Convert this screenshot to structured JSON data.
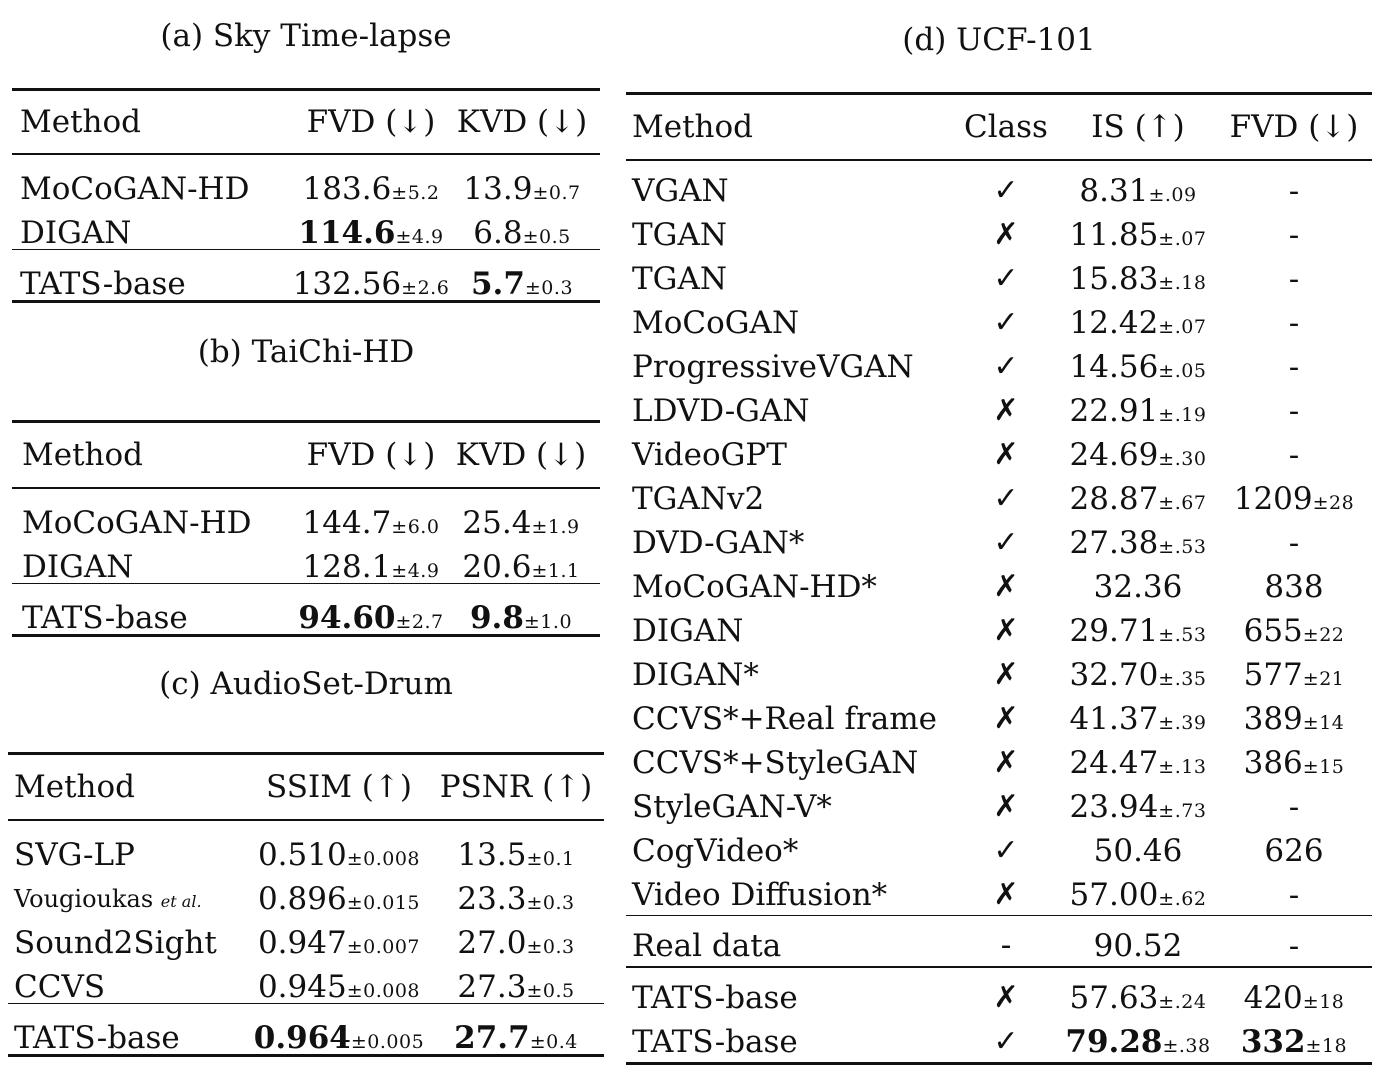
{
  "panels": [
    {
      "id": "a",
      "caption": "(a) Sky Time-lapse",
      "headers": [
        "Method",
        "FVD (↓)",
        "KVD (↓)"
      ],
      "groups": [
        [
          {
            "method": "MoCoGAN-HD",
            "cols": [
              {
                "v": "183.6",
                "pm": "±5.2",
                "bold": false
              },
              {
                "v": "13.9",
                "pm": "±0.7",
                "bold": false
              }
            ]
          },
          {
            "method": "DIGAN",
            "cols": [
              {
                "v": "114.6",
                "pm": "±4.9",
                "bold": true
              },
              {
                "v": "6.8",
                "pm": "±0.5",
                "bold": false
              }
            ]
          }
        ],
        [
          {
            "method": "TATS-base",
            "cols": [
              {
                "v": "132.56",
                "pm": "±2.6",
                "bold": false
              },
              {
                "v": "5.7",
                "pm": "±0.3",
                "bold": true
              }
            ]
          }
        ]
      ]
    },
    {
      "id": "b",
      "caption": "(b) TaiChi-HD",
      "headers": [
        "Method",
        "FVD (↓)",
        "KVD (↓)"
      ],
      "groups": [
        [
          {
            "method": "MoCoGAN-HD",
            "cols": [
              {
                "v": "144.7",
                "pm": "±6.0",
                "bold": false
              },
              {
                "v": "25.4",
                "pm": "±1.9",
                "bold": false
              }
            ]
          },
          {
            "method": "DIGAN",
            "cols": [
              {
                "v": "128.1",
                "pm": "±4.9",
                "bold": false
              },
              {
                "v": "20.6",
                "pm": "±1.1",
                "bold": false
              }
            ]
          }
        ],
        [
          {
            "method": "TATS-base",
            "cols": [
              {
                "v": "94.60",
                "pm": "±2.7",
                "bold": true
              },
              {
                "v": "9.8",
                "pm": "±1.0",
                "bold": true
              }
            ]
          }
        ]
      ]
    },
    {
      "id": "c",
      "caption": "(c) AudioSet-Drum",
      "headers": [
        "Method",
        "SSIM (↑)",
        "PSNR (↑)"
      ],
      "groups": [
        [
          {
            "method": "SVG-LP",
            "cols": [
              {
                "v": "0.510",
                "pm": "±0.008",
                "bold": false
              },
              {
                "v": "13.5",
                "pm": "±0.1",
                "bold": false
              }
            ]
          },
          {
            "method": "Vougioukas",
            "etal": "et al.",
            "cols": [
              {
                "v": "0.896",
                "pm": "±0.015",
                "bold": false
              },
              {
                "v": "23.3",
                "pm": "±0.3",
                "bold": false
              }
            ]
          },
          {
            "method": "Sound2Sight",
            "cols": [
              {
                "v": "0.947",
                "pm": "±0.007",
                "bold": false
              },
              {
                "v": "27.0",
                "pm": "±0.3",
                "bold": false
              }
            ]
          },
          {
            "method": "CCVS",
            "cols": [
              {
                "v": "0.945",
                "pm": "±0.008",
                "bold": false
              },
              {
                "v": "27.3",
                "pm": "±0.5",
                "bold": false
              }
            ]
          }
        ],
        [
          {
            "method": "TATS-base",
            "cols": [
              {
                "v": "0.964",
                "pm": "±0.005",
                "bold": true
              },
              {
                "v": "27.7",
                "pm": "±0.4",
                "bold": true
              }
            ]
          }
        ]
      ]
    },
    {
      "id": "d",
      "caption": "(d) UCF-101",
      "headers": [
        "Method",
        "Class",
        "IS (↑)",
        "FVD (↓)"
      ],
      "groups": [
        [
          {
            "method": "VGAN",
            "cls": "check",
            "cols": [
              {
                "v": "8.31",
                "pm": "±.09",
                "bold": false
              },
              {
                "v": "-",
                "pm": "",
                "bold": false
              }
            ]
          },
          {
            "method": "TGAN",
            "cls": "cross",
            "cols": [
              {
                "v": "11.85",
                "pm": "±.07",
                "bold": false
              },
              {
                "v": "-",
                "pm": "",
                "bold": false
              }
            ]
          },
          {
            "method": "TGAN",
            "cls": "check",
            "cols": [
              {
                "v": "15.83",
                "pm": "±.18",
                "bold": false
              },
              {
                "v": "-",
                "pm": "",
                "bold": false
              }
            ]
          },
          {
            "method": "MoCoGAN",
            "cls": "check",
            "cols": [
              {
                "v": "12.42",
                "pm": "±.07",
                "bold": false
              },
              {
                "v": "-",
                "pm": "",
                "bold": false
              }
            ]
          },
          {
            "method": "ProgressiveVGAN",
            "cls": "check",
            "cols": [
              {
                "v": "14.56",
                "pm": "±.05",
                "bold": false
              },
              {
                "v": "-",
                "pm": "",
                "bold": false
              }
            ]
          },
          {
            "method": "LDVD-GAN",
            "cls": "cross",
            "cols": [
              {
                "v": "22.91",
                "pm": "±.19",
                "bold": false
              },
              {
                "v": "-",
                "pm": "",
                "bold": false
              }
            ]
          },
          {
            "method": "VideoGPT",
            "cls": "cross",
            "cols": [
              {
                "v": "24.69",
                "pm": "±.30",
                "bold": false
              },
              {
                "v": "-",
                "pm": "",
                "bold": false
              }
            ]
          },
          {
            "method": "TGANv2",
            "cls": "check",
            "cols": [
              {
                "v": "28.87",
                "pm": "±.67",
                "bold": false
              },
              {
                "v": "1209",
                "pm": "±28",
                "bold": false
              }
            ]
          },
          {
            "method": "DVD-GAN*",
            "cls": "check",
            "cols": [
              {
                "v": "27.38",
                "pm": "±.53",
                "bold": false
              },
              {
                "v": "-",
                "pm": "",
                "bold": false
              }
            ]
          },
          {
            "method": "MoCoGAN-HD*",
            "cls": "cross",
            "cols": [
              {
                "v": "32.36",
                "pm": "",
                "bold": false
              },
              {
                "v": "838",
                "pm": "",
                "bold": false
              }
            ]
          },
          {
            "method": "DIGAN",
            "cls": "cross",
            "cols": [
              {
                "v": "29.71",
                "pm": "±.53",
                "bold": false
              },
              {
                "v": "655",
                "pm": "±22",
                "bold": false
              }
            ]
          },
          {
            "method": "DIGAN*",
            "cls": "cross",
            "cols": [
              {
                "v": "32.70",
                "pm": "±.35",
                "bold": false
              },
              {
                "v": "577",
                "pm": "±21",
                "bold": false
              }
            ]
          },
          {
            "method": "CCVS*+Real frame",
            "cls": "cross",
            "cols": [
              {
                "v": "41.37",
                "pm": "±.39",
                "bold": false
              },
              {
                "v": "389",
                "pm": "±14",
                "bold": false
              }
            ]
          },
          {
            "method": "CCVS*+StyleGAN",
            "cls": "cross",
            "cols": [
              {
                "v": "24.47",
                "pm": "±.13",
                "bold": false
              },
              {
                "v": "386",
                "pm": "±15",
                "bold": false
              }
            ]
          },
          {
            "method": "StyleGAN-V*",
            "cls": "cross",
            "cols": [
              {
                "v": "23.94",
                "pm": "±.73",
                "bold": false
              },
              {
                "v": "-",
                "pm": "",
                "bold": false
              }
            ]
          },
          {
            "method": "CogVideo*",
            "cls": "check",
            "cols": [
              {
                "v": "50.46",
                "pm": "",
                "bold": false
              },
              {
                "v": "626",
                "pm": "",
                "bold": false
              }
            ]
          },
          {
            "method": "Video Diffusion*",
            "cls": "cross",
            "cols": [
              {
                "v": "57.00",
                "pm": "±.62",
                "bold": false
              },
              {
                "v": "-",
                "pm": "",
                "bold": false
              }
            ]
          }
        ],
        [
          {
            "method": "Real data",
            "cls": "dash",
            "cols": [
              {
                "v": "90.52",
                "pm": "",
                "bold": false
              },
              {
                "v": "-",
                "pm": "",
                "bold": false
              }
            ]
          }
        ],
        [
          {
            "method": "TATS-base",
            "cls": "cross",
            "cols": [
              {
                "v": "57.63",
                "pm": "±.24",
                "bold": false
              },
              {
                "v": "420",
                "pm": "±18",
                "bold": false
              }
            ]
          },
          {
            "method": "TATS-base",
            "cls": "check",
            "cols": [
              {
                "v": "79.28",
                "pm": "±.38",
                "bold": true
              },
              {
                "v": "332",
                "pm": "±18",
                "bold": true
              }
            ]
          }
        ]
      ]
    }
  ],
  "class_marks": {
    "check": "✓",
    "cross": "✗",
    "dash": "-"
  }
}
